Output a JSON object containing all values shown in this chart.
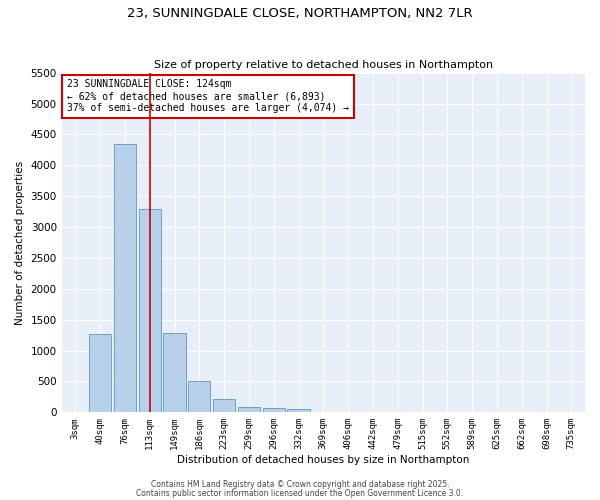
{
  "title": "23, SUNNINGDALE CLOSE, NORTHAMPTON, NN2 7LR",
  "subtitle": "Size of property relative to detached houses in Northampton",
  "xlabel": "Distribution of detached houses by size in Northampton",
  "ylabel": "Number of detached properties",
  "bar_labels": [
    "3sqm",
    "40sqm",
    "76sqm",
    "113sqm",
    "149sqm",
    "186sqm",
    "223sqm",
    "259sqm",
    "296sqm",
    "332sqm",
    "369sqm",
    "406sqm",
    "442sqm",
    "479sqm",
    "515sqm",
    "552sqm",
    "589sqm",
    "625sqm",
    "662sqm",
    "698sqm",
    "735sqm"
  ],
  "bar_values": [
    0,
    1270,
    4350,
    3300,
    1280,
    500,
    210,
    90,
    70,
    60,
    0,
    0,
    0,
    0,
    0,
    0,
    0,
    0,
    0,
    0,
    0
  ],
  "bar_color": "#b8d0ea",
  "bar_edge_color": "#6ea3cc",
  "vline_x": 3,
  "vline_color": "#cc0000",
  "annotation_text": "23 SUNNINGDALE CLOSE: 124sqm\n← 62% of detached houses are smaller (6,893)\n37% of semi-detached houses are larger (4,074) →",
  "annotation_box_color": "#ffffff",
  "annotation_box_edgecolor": "#cc0000",
  "ylim": [
    0,
    5500
  ],
  "yticks": [
    0,
    500,
    1000,
    1500,
    2000,
    2500,
    3000,
    3500,
    4000,
    4500,
    5000,
    5500
  ],
  "bg_color": "#e8eef7",
  "footer1": "Contains HM Land Registry data © Crown copyright and database right 2025.",
  "footer2": "Contains public sector information licensed under the Open Government Licence 3.0."
}
